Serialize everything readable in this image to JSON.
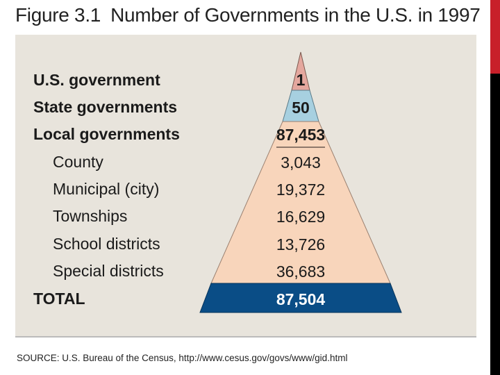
{
  "title": {
    "figure": "Figure 3.1",
    "text": "Number of Governments in the U.S. in 1997"
  },
  "rows": [
    {
      "label": "U.S. government",
      "value": "1"
    },
    {
      "label": "State governments",
      "value": "50"
    },
    {
      "label": "Local governments",
      "value": "87,453"
    },
    {
      "label": "County",
      "value": "3,043"
    },
    {
      "label": "Municipal (city)",
      "value": "19,372"
    },
    {
      "label": "Townships",
      "value": "16,629"
    },
    {
      "label": "School districts",
      "value": "13,726"
    },
    {
      "label": "Special districts",
      "value": "36,683"
    },
    {
      "label": "TOTAL",
      "value": "87,504"
    }
  ],
  "source": "SOURCE: U.S. Bureau of the Census, http://www.cesus.gov/govs/www/gid.html",
  "colors": {
    "us_government": "#e4a79e",
    "state_governments": "#a7d0e0",
    "local_governments": "#f8d5bb",
    "total": "#0a4d86",
    "panel_bg": "#e8e4dc"
  }
}
